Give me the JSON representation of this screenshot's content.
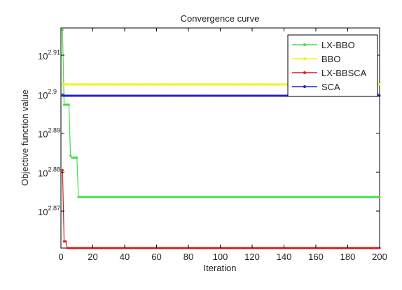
{
  "chart_data": {
    "type": "line",
    "title": "Convergence curve",
    "xlabel": "Iteration",
    "ylabel": "Objective function value",
    "xlim": [
      0,
      200
    ],
    "ylim_log10": [
      2.8605,
      2.917
    ],
    "y_scale": "log",
    "grid": false,
    "legend_position": "top-right",
    "x_ticks": [
      "0",
      "20",
      "40",
      "60",
      "80",
      "100",
      "120",
      "140",
      "160",
      "180",
      "200"
    ],
    "y_ticks": [
      {
        "base": "10",
        "exp": "2.87",
        "log10": 2.87
      },
      {
        "base": "10",
        "exp": "2.88",
        "log10": 2.88
      },
      {
        "base": "10",
        "exp": "2.89",
        "log10": 2.89
      },
      {
        "base": "10",
        "exp": "2.9",
        "log10": 2.9
      },
      {
        "base": "10",
        "exp": "2.91",
        "log10": 2.91
      }
    ],
    "series": [
      {
        "name": "LX-BBO",
        "color": "#44dd44",
        "steps": [
          [
            1,
            2.9165
          ],
          [
            2,
            2.8973
          ],
          [
            5,
            2.8973
          ],
          [
            6,
            2.8842
          ],
          [
            7,
            2.8837
          ],
          [
            10,
            2.8837
          ],
          [
            11,
            2.8736
          ],
          [
            200,
            2.8736
          ]
        ]
      },
      {
        "name": "BBO",
        "color": "#f2f222",
        "steps": [
          [
            1,
            2.9025
          ],
          [
            200,
            2.9025
          ]
        ]
      },
      {
        "name": "LX-BBSCA",
        "color": "#cc2222",
        "steps": [
          [
            1,
            2.8805
          ],
          [
            2,
            2.8622
          ],
          [
            3,
            2.8622
          ],
          [
            4,
            2.8605
          ],
          [
            200,
            2.8605
          ]
        ]
      },
      {
        "name": "SCA",
        "color": "#2222cc",
        "steps": [
          [
            1,
            2.8996
          ],
          [
            200,
            2.8996
          ]
        ]
      }
    ]
  }
}
